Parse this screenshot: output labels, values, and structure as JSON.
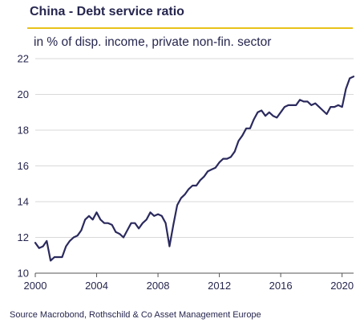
{
  "title": "China - Debt service ratio",
  "subtitle": "in % of disp. income, private non-fin. sector",
  "source": "Source Macrobond, Rothschild & Co Asset Management Europe",
  "colors": {
    "accent": "#e8c21a",
    "line": "#2b2a5e",
    "grid": "#d9d9d9",
    "axis": "#555555"
  },
  "chart_data": {
    "type": "line",
    "title": "China - Debt service ratio",
    "subtitle": "in % of disp. income, private non-fin. sector",
    "xlabel": "",
    "ylabel": "",
    "xlim": [
      2000,
      2020.75
    ],
    "ylim": [
      10,
      22
    ],
    "x_ticks": [
      2000,
      2004,
      2008,
      2012,
      2016,
      2020
    ],
    "y_ticks": [
      10,
      12,
      14,
      16,
      18,
      20,
      22
    ],
    "grid": true,
    "series": [
      {
        "points": [
          [
            2000.0,
            11.7
          ],
          [
            2000.25,
            11.4
          ],
          [
            2000.5,
            11.5
          ],
          [
            2000.75,
            11.8
          ],
          [
            2001.0,
            10.7
          ],
          [
            2001.25,
            10.9
          ],
          [
            2001.5,
            10.9
          ],
          [
            2001.75,
            10.9
          ],
          [
            2002.0,
            11.5
          ],
          [
            2002.25,
            11.8
          ],
          [
            2002.5,
            12.0
          ],
          [
            2002.75,
            12.1
          ],
          [
            2003.0,
            12.4
          ],
          [
            2003.25,
            13.0
          ],
          [
            2003.5,
            13.2
          ],
          [
            2003.75,
            13.0
          ],
          [
            2004.0,
            13.4
          ],
          [
            2004.25,
            13.0
          ],
          [
            2004.5,
            12.8
          ],
          [
            2004.75,
            12.8
          ],
          [
            2005.0,
            12.7
          ],
          [
            2005.25,
            12.3
          ],
          [
            2005.5,
            12.2
          ],
          [
            2005.75,
            12.0
          ],
          [
            2006.0,
            12.4
          ],
          [
            2006.25,
            12.8
          ],
          [
            2006.5,
            12.8
          ],
          [
            2006.75,
            12.5
          ],
          [
            2007.0,
            12.8
          ],
          [
            2007.25,
            13.0
          ],
          [
            2007.5,
            13.4
          ],
          [
            2007.75,
            13.2
          ],
          [
            2008.0,
            13.3
          ],
          [
            2008.25,
            13.2
          ],
          [
            2008.5,
            12.8
          ],
          [
            2008.75,
            11.5
          ],
          [
            2009.0,
            12.7
          ],
          [
            2009.25,
            13.8
          ],
          [
            2009.5,
            14.2
          ],
          [
            2009.75,
            14.4
          ],
          [
            2010.0,
            14.7
          ],
          [
            2010.25,
            14.9
          ],
          [
            2010.5,
            14.9
          ],
          [
            2010.75,
            15.2
          ],
          [
            2011.0,
            15.4
          ],
          [
            2011.25,
            15.7
          ],
          [
            2011.5,
            15.8
          ],
          [
            2011.75,
            15.9
          ],
          [
            2012.0,
            16.2
          ],
          [
            2012.25,
            16.4
          ],
          [
            2012.5,
            16.4
          ],
          [
            2012.75,
            16.5
          ],
          [
            2013.0,
            16.8
          ],
          [
            2013.25,
            17.4
          ],
          [
            2013.5,
            17.7
          ],
          [
            2013.75,
            18.1
          ],
          [
            2014.0,
            18.1
          ],
          [
            2014.25,
            18.6
          ],
          [
            2014.5,
            19.0
          ],
          [
            2014.75,
            19.1
          ],
          [
            2015.0,
            18.8
          ],
          [
            2015.25,
            19.0
          ],
          [
            2015.5,
            18.8
          ],
          [
            2015.75,
            18.7
          ],
          [
            2016.0,
            19.0
          ],
          [
            2016.25,
            19.3
          ],
          [
            2016.5,
            19.4
          ],
          [
            2016.75,
            19.4
          ],
          [
            2017.0,
            19.4
          ],
          [
            2017.25,
            19.7
          ],
          [
            2017.5,
            19.6
          ],
          [
            2017.75,
            19.6
          ],
          [
            2018.0,
            19.4
          ],
          [
            2018.25,
            19.5
          ],
          [
            2018.5,
            19.3
          ],
          [
            2018.75,
            19.1
          ],
          [
            2019.0,
            18.9
          ],
          [
            2019.25,
            19.3
          ],
          [
            2019.5,
            19.3
          ],
          [
            2019.75,
            19.4
          ],
          [
            2020.0,
            19.3
          ],
          [
            2020.25,
            20.3
          ],
          [
            2020.5,
            20.9
          ],
          [
            2020.75,
            21.0
          ]
        ]
      }
    ]
  }
}
